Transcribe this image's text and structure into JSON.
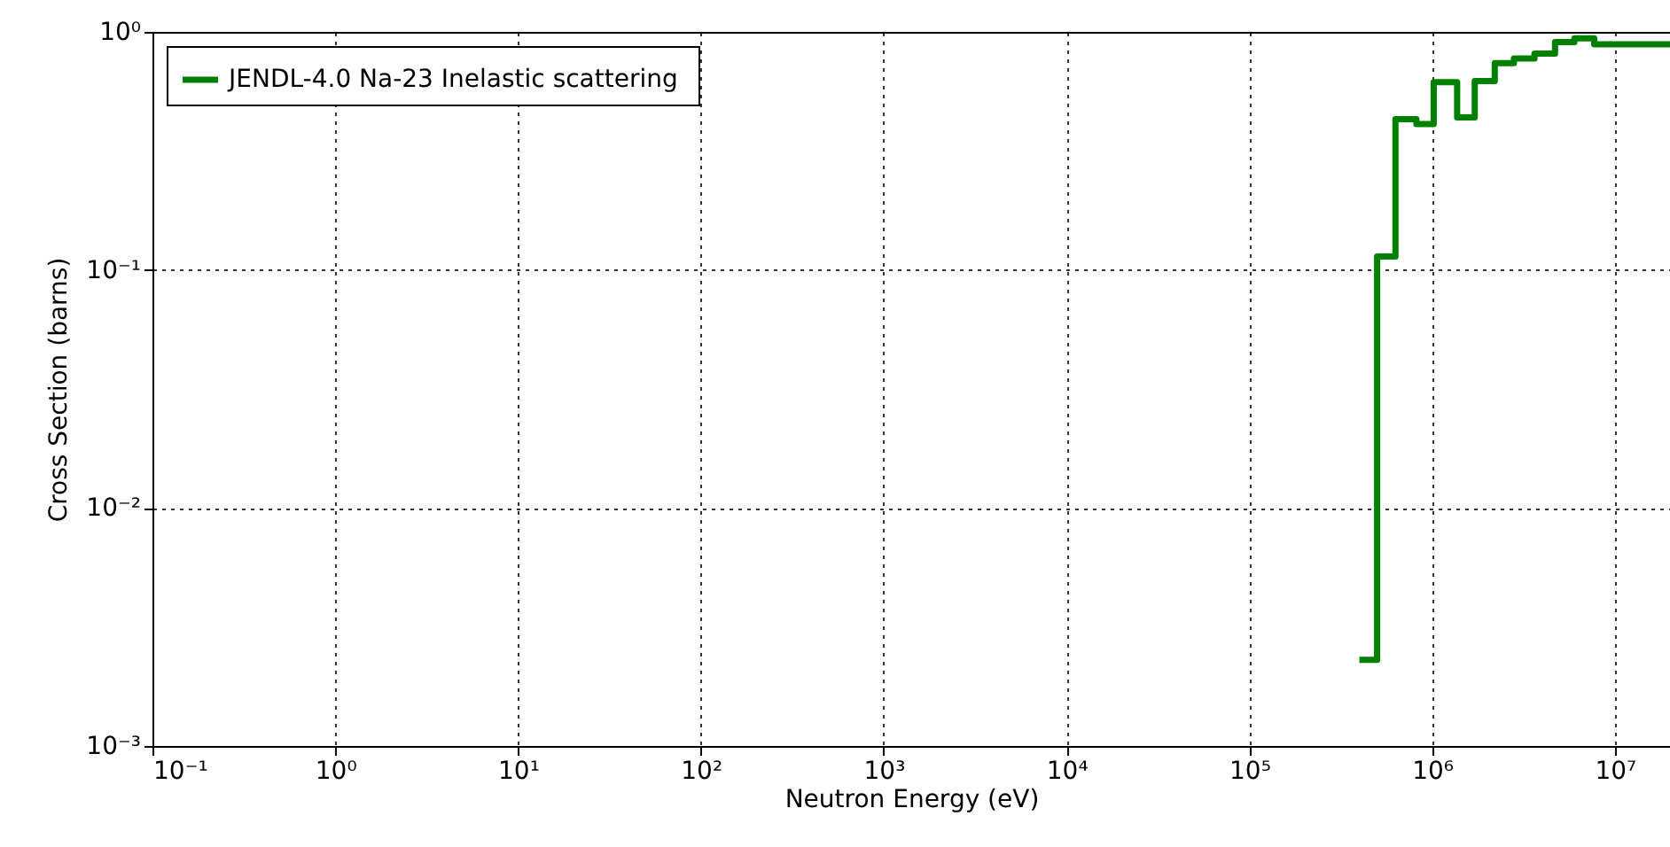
{
  "chart_data": {
    "type": "step",
    "xlabel": "Neutron Energy (eV)",
    "ylabel": "Cross Section (barns)",
    "log": "xy",
    "grid": true,
    "legend": "top left",
    "line_style": "solid",
    "marker": "none",
    "xlim": [
      0.1,
      20000000
    ],
    "ylim": [
      0.001,
      1
    ],
    "xticks": [
      {
        "value": 0.1,
        "label": "10⁻¹"
      },
      {
        "value": 1,
        "label": "10⁰"
      },
      {
        "value": 10,
        "label": "10¹"
      },
      {
        "value": 100,
        "label": "10²"
      },
      {
        "value": 1000,
        "label": "10³"
      },
      {
        "value": 10000,
        "label": "10⁴"
      },
      {
        "value": 100000,
        "label": "10⁵"
      },
      {
        "value": 1000000,
        "label": "10⁶"
      },
      {
        "value": 10000000,
        "label": "10⁷"
      }
    ],
    "yticks": [
      {
        "value": 0.001,
        "label": "10⁻³"
      },
      {
        "value": 0.01,
        "label": "10⁻²"
      },
      {
        "value": 0.1,
        "label": "10⁻¹"
      },
      {
        "value": 1,
        "label": "10⁰"
      }
    ],
    "series": [
      {
        "name": "JENDL-4.0  Na-23 Inelastic scattering",
        "color": "#008000",
        "x": [
          400000,
          500000,
          630000,
          820000,
          1020000,
          1370000,
          1710000,
          2200000,
          2800000,
          3630000,
          4700000,
          6000000,
          7700000,
          20000000
        ],
        "values": [
          0.0023,
          0.114,
          0.43,
          0.41,
          0.615,
          0.437,
          0.622,
          0.74,
          0.773,
          0.81,
          0.907,
          0.94,
          0.887,
          0.887
        ]
      }
    ]
  }
}
